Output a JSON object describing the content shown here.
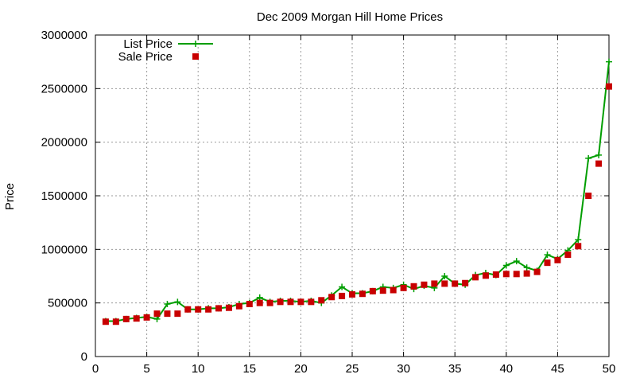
{
  "chart_data": {
    "type": "scatter",
    "title": "Dec 2009 Morgan Hill Home Prices",
    "xlabel": "",
    "ylabel": "Price",
    "xlim": [
      0,
      50
    ],
    "ylim": [
      0,
      3000000
    ],
    "xticks": [
      0,
      5,
      10,
      15,
      20,
      25,
      30,
      35,
      40,
      45,
      50
    ],
    "yticks": [
      0,
      500000,
      1000000,
      1500000,
      2000000,
      2500000,
      3000000
    ],
    "grid": true,
    "legend_position": "top-left",
    "x": [
      1,
      2,
      3,
      4,
      5,
      6,
      7,
      8,
      9,
      10,
      11,
      12,
      13,
      14,
      15,
      16,
      17,
      18,
      19,
      20,
      21,
      22,
      23,
      24,
      25,
      26,
      27,
      28,
      29,
      30,
      31,
      32,
      33,
      34,
      35,
      36,
      37,
      38,
      39,
      40,
      41,
      42,
      43,
      44,
      45,
      46,
      47,
      48,
      49,
      50
    ],
    "series": [
      {
        "name": "List Price",
        "style": "line-points",
        "color": "#009e00",
        "values": [
          330000,
          330000,
          350000,
          360000,
          370000,
          350000,
          490000,
          510000,
          440000,
          440000,
          450000,
          450000,
          460000,
          490000,
          500000,
          550000,
          510000,
          520000,
          520000,
          510000,
          520000,
          500000,
          570000,
          650000,
          590000,
          590000,
          610000,
          650000,
          640000,
          670000,
          630000,
          660000,
          640000,
          750000,
          680000,
          670000,
          760000,
          780000,
          760000,
          850000,
          890000,
          830000,
          800000,
          950000,
          910000,
          990000,
          1090000,
          1850000,
          1880000,
          2750000
        ]
      },
      {
        "name": "Sale Price",
        "style": "points",
        "color": "#c80000",
        "values": [
          325000,
          325000,
          350000,
          355000,
          365000,
          400000,
          400000,
          400000,
          440000,
          440000,
          440000,
          450000,
          455000,
          470000,
          490000,
          500000,
          500000,
          510000,
          510000,
          510000,
          510000,
          525000,
          555000,
          565000,
          580000,
          585000,
          610000,
          615000,
          620000,
          640000,
          655000,
          670000,
          680000,
          680000,
          680000,
          685000,
          740000,
          755000,
          765000,
          770000,
          770000,
          775000,
          790000,
          875000,
          900000,
          950000,
          1030000,
          1500000,
          1800000,
          2520000
        ]
      }
    ]
  }
}
